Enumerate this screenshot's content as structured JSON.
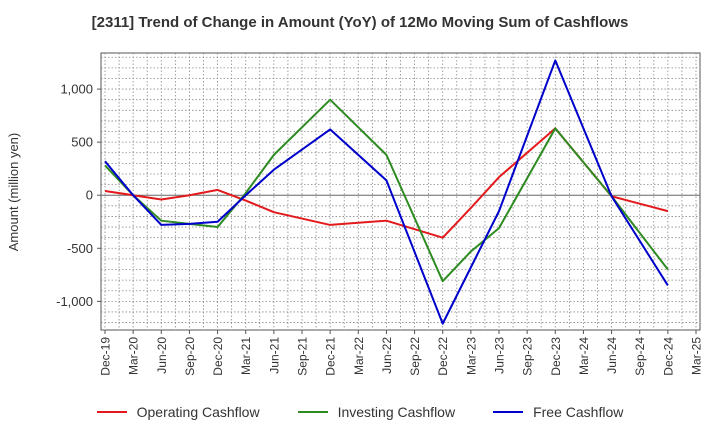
{
  "chart_data": {
    "type": "line",
    "title": "[2311]  Trend of Change in Amount (YoY) of 12Mo Moving Sum of Cashflows",
    "xlabel": "",
    "ylabel": "Amount (million yen)",
    "ylim": [
      -1270,
      1340
    ],
    "yticks": [
      1000,
      500,
      0,
      -500,
      -1000
    ],
    "ytick_labels": [
      "1,000",
      "500",
      "0",
      "-500",
      "-1,000"
    ],
    "categories": [
      "Dec-19",
      "Mar-20",
      "Jun-20",
      "Sep-20",
      "Dec-20",
      "Mar-21",
      "Jun-21",
      "Sep-21",
      "Dec-21",
      "Mar-22",
      "Jun-22",
      "Sep-22",
      "Dec-22",
      "Mar-23",
      "Jun-23",
      "Sep-23",
      "Dec-23",
      "Mar-24",
      "Jun-24",
      "Sep-24",
      "Dec-24",
      "Mar-25"
    ],
    "grid": true,
    "legend_position": "bottom",
    "series": [
      {
        "name": "Operating Cashflow",
        "color": "#e31a1c",
        "values": [
          40,
          0,
          -40,
          0,
          50,
          -50,
          -160,
          -220,
          -280,
          -260,
          -240,
          -320,
          -400,
          -120,
          170,
          400,
          630,
          null,
          -10,
          -80,
          -150,
          null
        ]
      },
      {
        "name": "Investing Cashflow",
        "color": "#2e8b22",
        "values": [
          280,
          0,
          -240,
          -270,
          -300,
          20,
          380,
          null,
          900,
          null,
          380,
          null,
          -810,
          -530,
          -310,
          null,
          630,
          null,
          -10,
          null,
          -700,
          null
        ]
      },
      {
        "name": "Free Cashflow",
        "color": "#0000cc",
        "values": [
          320,
          0,
          -280,
          -270,
          -250,
          0,
          240,
          null,
          620,
          null,
          140,
          null,
          -1210,
          -680,
          -150,
          null,
          1270,
          null,
          -10,
          null,
          -850,
          null
        ]
      }
    ]
  }
}
